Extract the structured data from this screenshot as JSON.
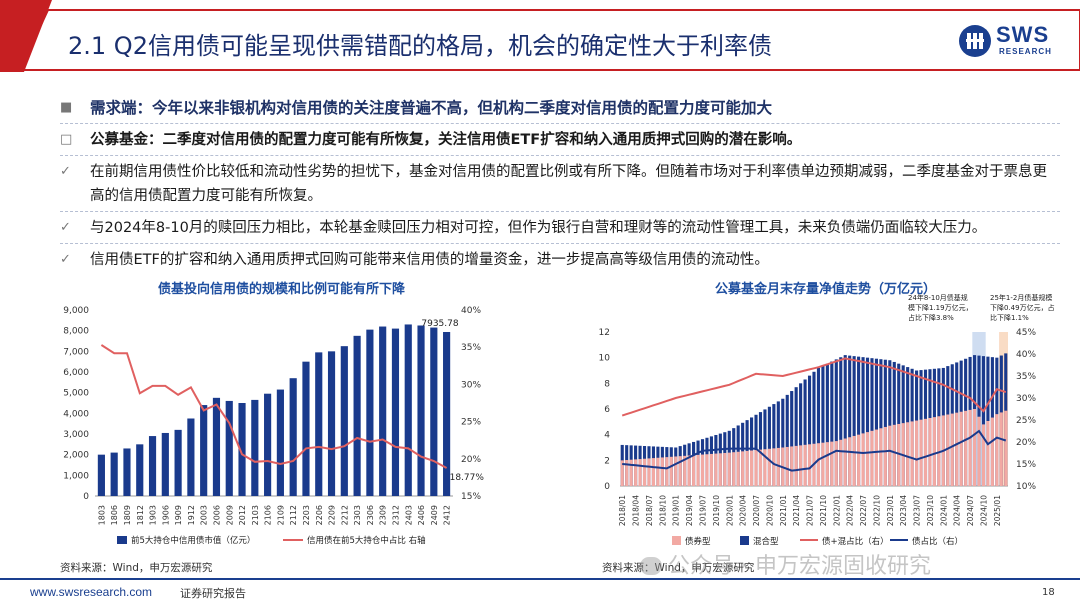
{
  "slide": {
    "title": "2.1 Q2信用债可能呈现供需错配的格局，机会的确定性大于利率债",
    "logo_text": "SWS",
    "logo_sub": "RESEARCH"
  },
  "bullets": [
    {
      "marker": "■",
      "text": "需求端：今年以来非银机构对信用债的关注度普遍不高，但机构二季度对信用债的配置力度可能加大"
    },
    {
      "marker": "□",
      "text": "公募基金：二季度对信用债的配置力度可能有所恢复，关注信用债ETF扩容和纳入通用质押式回购的潜在影响。"
    },
    {
      "marker": "✓",
      "text": "在前期信用债性价比较低和流动性劣势的担忧下，基金对信用债的配置比例或有所下降。但随着市场对于利率债单边预期减弱，二季度基金对于票息更高的信用债配置力度可能有所恢复。"
    },
    {
      "marker": "✓",
      "text": "与2024年8-10月的赎回压力相比，本轮基金赎回压力相对可控，但作为银行自营和理财等的流动性管理工具，未来负债端仍面临较大压力。"
    },
    {
      "marker": "✓",
      "text": "信用债ETF的扩容和纳入通用质押式回购可能带来信用债的增量资金，进一步提高高等级信用债的流动性。"
    }
  ],
  "chart_left_title": "债基投向信用债的规模和比例可能有所下降",
  "chart_right_title": "公募基金月末存量净值走势（万亿元）",
  "source_left": "资料来源：Wind，申万宏源研究",
  "source_right": "资料来源：Wind，申万宏源研究",
  "footer": {
    "url": "www.swsresearch.com",
    "report": "证券研究报告",
    "page": "18"
  },
  "watermark": "公众号 · 申万宏源固收研究",
  "colors": {
    "navy": "#1a3a8c",
    "red": "#e06060",
    "pink": "#f2a9a3",
    "title_blue": "#1f4fa0"
  },
  "chart_data": [
    {
      "type": "bar",
      "title": "债基投向信用债的规模和比例可能有所下降",
      "categories": [
        "1803",
        "1806",
        "1809",
        "1812",
        "1903",
        "1906",
        "1909",
        "1912",
        "2003",
        "2006",
        "2009",
        "2012",
        "2103",
        "2106",
        "2109",
        "2112",
        "2203",
        "2206",
        "2209",
        "2212",
        "2303",
        "2306",
        "2309",
        "2312",
        "2403",
        "2406",
        "2409",
        "2412"
      ],
      "series": [
        {
          "name": "前5大持仓中信用债市值（亿元）",
          "axis": "left",
          "type": "bar",
          "color": "#1a3a8c",
          "values": [
            2000,
            2100,
            2300,
            2500,
            2900,
            3050,
            3200,
            3750,
            4400,
            4750,
            4600,
            4500,
            4650,
            4950,
            5150,
            5700,
            6500,
            6950,
            7000,
            7250,
            7750,
            8050,
            8200,
            8100,
            8300,
            8250,
            8150,
            7935.78
          ]
        },
        {
          "name": "信用债在前5大持仓中占比 右轴",
          "axis": "right",
          "type": "line",
          "color": "#e06060",
          "values": [
            35.3,
            34.2,
            34.2,
            28.8,
            29.8,
            29.8,
            28.6,
            29.6,
            26.5,
            27.3,
            24.8,
            20.6,
            19.6,
            19.7,
            19.3,
            19.7,
            21.4,
            21.6,
            21.3,
            21.7,
            22.8,
            22.3,
            22.6,
            21.6,
            21.4,
            20.3,
            19.7,
            18.77
          ]
        }
      ],
      "annotations": {
        "last_bar_label": "7935.78",
        "last_ratio_label": "18.77%"
      },
      "y_left": {
        "min": 0,
        "max": 9000,
        "ticks": [
          "0",
          "1,000",
          "2,000",
          "3,000",
          "4,000",
          "5,000",
          "6,000",
          "7,000",
          "8,000",
          "9,000"
        ]
      },
      "y_right": {
        "min": 15,
        "max": 40,
        "ticks": [
          "15%",
          "20%",
          "25%",
          "30%",
          "35%",
          "40%"
        ]
      },
      "legend": [
        "前5大持仓中信用债市值（亿元）",
        "信用债在前5大持仓中占比 右轴"
      ]
    },
    {
      "type": "bar",
      "title": "公募基金月末存量净值走势（万亿元）",
      "x_ticks": [
        "2018/01",
        "2018/04",
        "2018/07",
        "2018/10",
        "2019/01",
        "2019/04",
        "2019/07",
        "2019/10",
        "2020/01",
        "2020/04",
        "2020/07",
        "2020/10",
        "2021/01",
        "2021/04",
        "2021/07",
        "2021/10",
        "2022/01",
        "2022/04",
        "2022/07",
        "2022/10",
        "2023/01",
        "2023/04",
        "2023/07",
        "2023/10",
        "2024/01",
        "2024/04",
        "2024/07",
        "2024/10",
        "2025/01"
      ],
      "series": [
        {
          "name": "债券型",
          "axis": "left",
          "type": "bar",
          "color": "#f2a9a3"
        },
        {
          "name": "混合型",
          "axis": "left",
          "type": "bar",
          "color": "#1a3a8c"
        },
        {
          "name": "债+混占比（右）",
          "axis": "right",
          "type": "line",
          "color": "#e06060"
        },
        {
          "name": "债占比（右）",
          "axis": "right",
          "type": "line",
          "color": "#1a3a8c"
        }
      ],
      "y_left": {
        "min": 0,
        "max": 12,
        "ticks": [
          "0",
          "2",
          "4",
          "6",
          "8",
          "10",
          "12"
        ]
      },
      "y_right": {
        "min": 10,
        "max": 45,
        "ticks": [
          "10%",
          "15%",
          "20%",
          "25%",
          "30%",
          "35%",
          "40%",
          "45%"
        ]
      },
      "annotations": [
        {
          "lines": [
            "24年8-10月债基规",
            "模下降1.19万亿元，",
            "占比下降3.8%"
          ]
        },
        {
          "lines": [
            "25年1-2月债基规模",
            "下降0.49万亿元，占",
            "比下降1.1%"
          ]
        }
      ],
      "legend": [
        "债券型",
        "混合型",
        "债+混占比（右）",
        "债占比（右）"
      ]
    }
  ]
}
